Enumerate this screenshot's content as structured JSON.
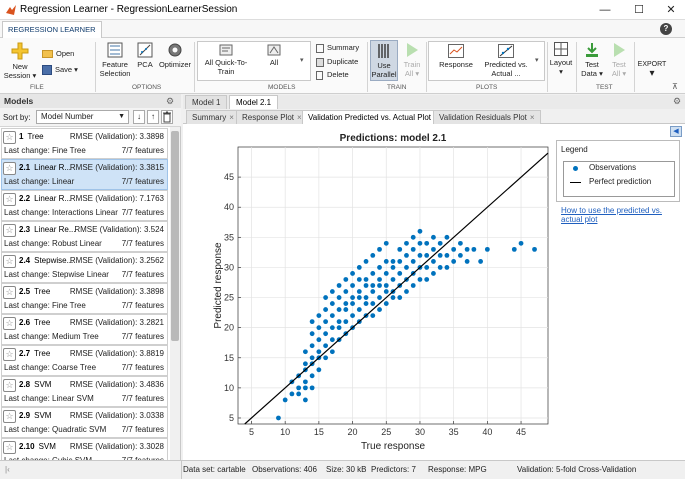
{
  "window": {
    "title": "Regression Learner - RegressionLearnerSession",
    "min": "—",
    "max": "☐",
    "close": "✕"
  },
  "app_tab": "REGRESSION LEARNER",
  "help": "?",
  "ribbon": {
    "new_session": [
      "New",
      "Session ▾"
    ],
    "open": "Open",
    "save": "Save ▾",
    "feature_selection": [
      "Feature",
      "Selection"
    ],
    "pca": "PCA",
    "optimizer": "Optimizer",
    "gallery": [
      [
        "All Quick-To-",
        "Train"
      ],
      [
        "All"
      ]
    ],
    "summary": "Summary",
    "duplicate": "Duplicate",
    "delete": "Delete",
    "use_parallel": [
      "Use",
      "Parallel"
    ],
    "train_all": [
      "Train",
      "All ▾"
    ],
    "response": "Response",
    "predicted_vs_actual": [
      "Predicted vs.",
      "Actual ..."
    ],
    "layout": "Layout",
    "test_data": [
      "Test",
      "Data ▾"
    ],
    "test_all": [
      "Test",
      "All ▾"
    ],
    "export": "EXPORT",
    "groups": {
      "file": "FILE",
      "options": "OPTIONS",
      "models": "MODELS",
      "train": "TRAIN",
      "plots": "PLOTS",
      "test": "TEST"
    }
  },
  "models_panel": {
    "title": "Models",
    "sort_label": "Sort by:",
    "sort_value": "Model Number",
    "items": [
      {
        "num": "1",
        "type": "Tree",
        "rmse": "RMSE (Validation): 3.3898",
        "change": "Last change: Fine Tree",
        "features": "7/7 features",
        "selected": false
      },
      {
        "num": "2.1",
        "type": "Linear R...",
        "rmse": "RMSE (Validation): 3.3815",
        "change": "Last change: Linear",
        "features": "7/7 features",
        "selected": true
      },
      {
        "num": "2.2",
        "type": "Linear R...",
        "rmse": "RMSE (Validation): 7.1763",
        "change": "Last change: Interactions Linear",
        "features": "7/7 features",
        "selected": false
      },
      {
        "num": "2.3",
        "type": "Linear Re...",
        "rmse": "RMSE (Validation): 3.524",
        "change": "Last change: Robust Linear",
        "features": "7/7 features",
        "selected": false
      },
      {
        "num": "2.4",
        "type": "Stepwise...",
        "rmse": "RMSE (Validation): 3.2562",
        "change": "Last change: Stepwise Linear",
        "features": "7/7 features",
        "selected": false
      },
      {
        "num": "2.5",
        "type": "Tree",
        "rmse": "RMSE (Validation): 3.3898",
        "change": "Last change: Fine Tree",
        "features": "7/7 features",
        "selected": false
      },
      {
        "num": "2.6",
        "type": "Tree",
        "rmse": "RMSE (Validation): 3.2821",
        "change": "Last change: Medium Tree",
        "features": "7/7 features",
        "selected": false
      },
      {
        "num": "2.7",
        "type": "Tree",
        "rmse": "RMSE (Validation): 3.8819",
        "change": "Last change: Coarse Tree",
        "features": "7/7 features",
        "selected": false
      },
      {
        "num": "2.8",
        "type": "SVM",
        "rmse": "RMSE (Validation): 3.4836",
        "change": "Last change: Linear SVM",
        "features": "7/7 features",
        "selected": false
      },
      {
        "num": "2.9",
        "type": "SVM",
        "rmse": "RMSE (Validation): 3.0338",
        "change": "Last change: Quadratic SVM",
        "features": "7/7 features",
        "selected": false
      },
      {
        "num": "2.10",
        "type": "SVM",
        "rmse": "RMSE (Validation): 3.3028",
        "change": "Last change: Cubic SVM",
        "features": "7/7 features",
        "selected": false
      }
    ]
  },
  "doc_tabs": [
    "Model 1",
    "Model 2.1"
  ],
  "plot_tabs": [
    "Summary",
    "Response Plot",
    "Validation Predicted vs. Actual Plot",
    "Validation Residuals Plot"
  ],
  "chart_data": {
    "type": "scatter",
    "title": "Predictions: model 2.1",
    "xlabel": "True response",
    "ylabel": "Predicted response",
    "xlim": [
      3,
      49
    ],
    "ylim": [
      4,
      50
    ],
    "xticks": [
      5,
      10,
      15,
      20,
      25,
      30,
      35,
      40,
      45
    ],
    "yticks": [
      5,
      10,
      15,
      20,
      25,
      30,
      35,
      40,
      45
    ],
    "grid": true,
    "legend_position": "right",
    "series": [
      {
        "name": "Observations",
        "color": "#0072bd",
        "points": [
          [
            9,
            5
          ],
          [
            10,
            8
          ],
          [
            11,
            9
          ],
          [
            11,
            11
          ],
          [
            12,
            9
          ],
          [
            12,
            10
          ],
          [
            12,
            12
          ],
          [
            13,
            8
          ],
          [
            13,
            10
          ],
          [
            13,
            11
          ],
          [
            13,
            13
          ],
          [
            13,
            14
          ],
          [
            13,
            16
          ],
          [
            14,
            10
          ],
          [
            14,
            12
          ],
          [
            14,
            14
          ],
          [
            14,
            15
          ],
          [
            14,
            17
          ],
          [
            14,
            19
          ],
          [
            14,
            21
          ],
          [
            15,
            13
          ],
          [
            15,
            15
          ],
          [
            15,
            16
          ],
          [
            15,
            18
          ],
          [
            15,
            20
          ],
          [
            15,
            22
          ],
          [
            16,
            15
          ],
          [
            16,
            17
          ],
          [
            16,
            19
          ],
          [
            16,
            21
          ],
          [
            16,
            23
          ],
          [
            16,
            25
          ],
          [
            17,
            16
          ],
          [
            17,
            18
          ],
          [
            17,
            20
          ],
          [
            17,
            22
          ],
          [
            17,
            24
          ],
          [
            17,
            26
          ],
          [
            18,
            18
          ],
          [
            18,
            20
          ],
          [
            18,
            21
          ],
          [
            18,
            23
          ],
          [
            18,
            25
          ],
          [
            18,
            27
          ],
          [
            19,
            19
          ],
          [
            19,
            21
          ],
          [
            19,
            23
          ],
          [
            19,
            24
          ],
          [
            19,
            26
          ],
          [
            19,
            28
          ],
          [
            20,
            20
          ],
          [
            20,
            22
          ],
          [
            20,
            24
          ],
          [
            20,
            25
          ],
          [
            20,
            27
          ],
          [
            20,
            29
          ],
          [
            21,
            21
          ],
          [
            21,
            23
          ],
          [
            21,
            25
          ],
          [
            21,
            26
          ],
          [
            21,
            28
          ],
          [
            21,
            30
          ],
          [
            22,
            22
          ],
          [
            22,
            24
          ],
          [
            22,
            25
          ],
          [
            22,
            27
          ],
          [
            22,
            28
          ],
          [
            22,
            31
          ],
          [
            23,
            22
          ],
          [
            23,
            24
          ],
          [
            23,
            26
          ],
          [
            23,
            27
          ],
          [
            23,
            29
          ],
          [
            23,
            32
          ],
          [
            24,
            23
          ],
          [
            24,
            25
          ],
          [
            24,
            27
          ],
          [
            24,
            28
          ],
          [
            24,
            30
          ],
          [
            24,
            33
          ],
          [
            25,
            24
          ],
          [
            25,
            26
          ],
          [
            25,
            27
          ],
          [
            25,
            29
          ],
          [
            25,
            31
          ],
          [
            25,
            34
          ],
          [
            26,
            25
          ],
          [
            26,
            26
          ],
          [
            26,
            28
          ],
          [
            26,
            30
          ],
          [
            26,
            31
          ],
          [
            27,
            25
          ],
          [
            27,
            27
          ],
          [
            27,
            29
          ],
          [
            27,
            31
          ],
          [
            27,
            33
          ],
          [
            28,
            26
          ],
          [
            28,
            28
          ],
          [
            28,
            30
          ],
          [
            28,
            32
          ],
          [
            28,
            34
          ],
          [
            29,
            27
          ],
          [
            29,
            29
          ],
          [
            29,
            31
          ],
          [
            29,
            33
          ],
          [
            29,
            35
          ],
          [
            30,
            28
          ],
          [
            30,
            30
          ],
          [
            30,
            32
          ],
          [
            30,
            34
          ],
          [
            30,
            36
          ],
          [
            31,
            28
          ],
          [
            31,
            30
          ],
          [
            31,
            32
          ],
          [
            31,
            34
          ],
          [
            32,
            29
          ],
          [
            32,
            31
          ],
          [
            32,
            33
          ],
          [
            32,
            35
          ],
          [
            33,
            30
          ],
          [
            33,
            32
          ],
          [
            33,
            34
          ],
          [
            34,
            30
          ],
          [
            34,
            32
          ],
          [
            34,
            35
          ],
          [
            35,
            31
          ],
          [
            35,
            33
          ],
          [
            36,
            32
          ],
          [
            36,
            34
          ],
          [
            37,
            31
          ],
          [
            37,
            33
          ],
          [
            38,
            33
          ],
          [
            39,
            31
          ],
          [
            40,
            33
          ],
          [
            44,
            33
          ],
          [
            45,
            34
          ],
          [
            47,
            33
          ]
        ]
      },
      {
        "name": "Perfect prediction",
        "color": "#000000",
        "points": [
          [
            4,
            4
          ],
          [
            49,
            49
          ]
        ]
      }
    ]
  },
  "help_link": [
    "How to use the predicted vs.",
    "actual plot"
  ],
  "legend_title": "Legend",
  "status": {
    "dataset": "Data set: cartable",
    "observations": "Observations: 406",
    "size": "Size: 30 kB",
    "predictors": "Predictors: 7",
    "response": "Response: MPG",
    "validation": "Validation: 5-fold Cross-Validation"
  }
}
